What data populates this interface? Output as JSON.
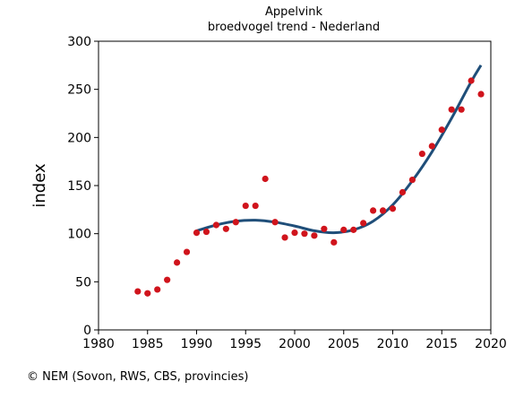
{
  "chart_data": {
    "type": "scatter",
    "title": "Appelvink",
    "subtitle": "broedvogel trend - Nederland",
    "xlabel": "",
    "ylabel": "index",
    "xlim": [
      1980,
      2020
    ],
    "ylim": [
      0,
      300
    ],
    "x_ticks": [
      "1980",
      "1985",
      "1990",
      "1995",
      "2000",
      "2005",
      "2010",
      "2015",
      "2020"
    ],
    "y_ticks": [
      "0",
      "50",
      "100",
      "150",
      "200",
      "250",
      "300"
    ],
    "grid": false,
    "legend": "none",
    "points_color": "#d0141c",
    "trend_color": "#1f4e79",
    "series": [
      {
        "x": [
          1984,
          1985,
          1986,
          1987,
          1988,
          1989,
          1990,
          1991,
          1992,
          1993,
          1994,
          1995,
          1996,
          1997,
          1998,
          1999,
          2000,
          2001,
          2002,
          2003,
          2004,
          2005,
          2006,
          2007,
          2008,
          2009,
          2010,
          2011,
          2012,
          2013,
          2014,
          2015,
          2016,
          2017,
          2018,
          2019
        ],
        "y": [
          40,
          38,
          42,
          52,
          70,
          81,
          101,
          102,
          109,
          105,
          112,
          129,
          129,
          157,
          112,
          96,
          101,
          100,
          98,
          105,
          91,
          104,
          104,
          111,
          124,
          124,
          126,
          143,
          156,
          183,
          191,
          208,
          229,
          229,
          259,
          245
        ]
      },
      {
        "type": "line",
        "x": [
          1990,
          1992,
          1994,
          1996,
          1998,
          2000,
          2002,
          2004,
          2006,
          2008,
          2010,
          2012,
          2014,
          2016,
          2018,
          2019
        ],
        "y": [
          103,
          109,
          113,
          114,
          112,
          108,
          103,
          101,
          104,
          113,
          130,
          155,
          185,
          220,
          258,
          275
        ]
      }
    ]
  },
  "credit": "© NEM (Sovon, RWS, CBS, provincies)"
}
